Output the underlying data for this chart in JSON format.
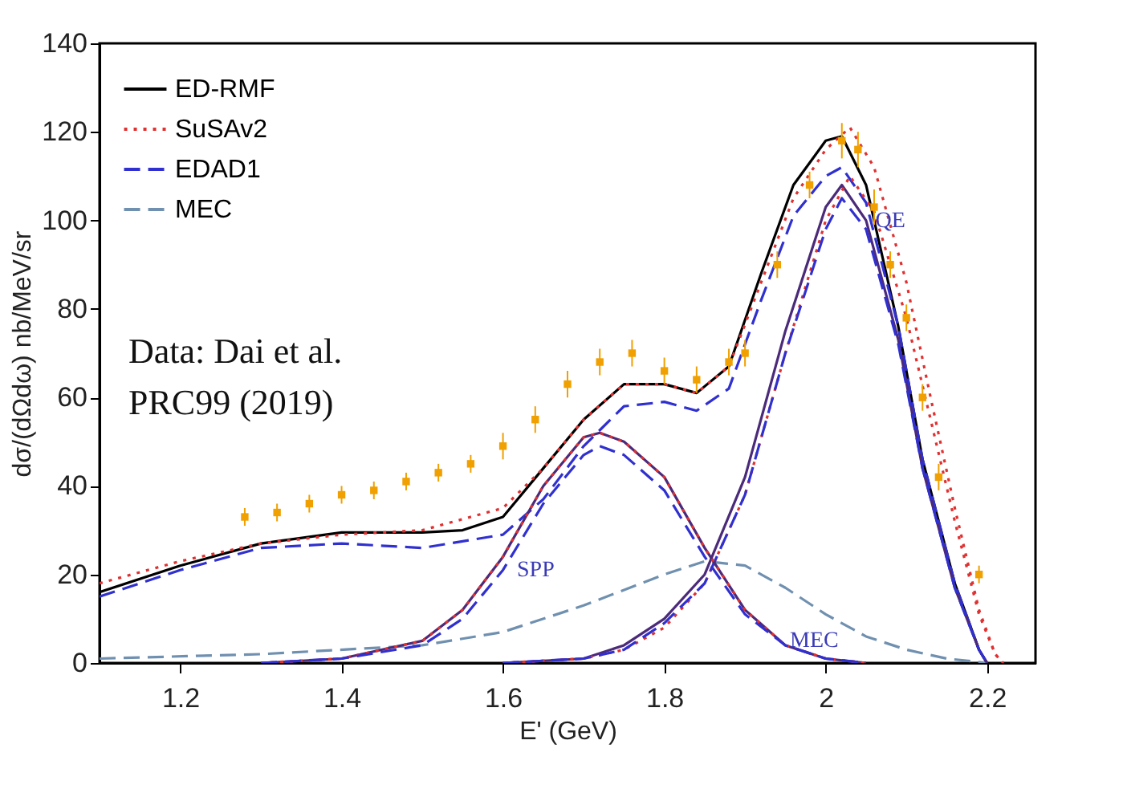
{
  "chart_data": {
    "type": "line",
    "xlabel": "E' (GeV)",
    "ylabel": "dσ/(dΩdω) nb/MeV/sr",
    "xlim": [
      1.1,
      2.26
    ],
    "xticks": [
      1.2,
      1.4,
      1.6,
      1.8,
      2,
      2.2
    ],
    "ylim": [
      0,
      140
    ],
    "yticks": [
      0,
      20,
      40,
      60,
      80,
      100,
      120,
      140
    ],
    "grid": false,
    "legend": "top left",
    "series": [
      {
        "name": "ED-RMF",
        "type": "line",
        "line_style": "solid",
        "color": "#000000",
        "x": [
          1.1,
          1.2,
          1.3,
          1.4,
          1.5,
          1.55,
          1.6,
          1.65,
          1.7,
          1.75,
          1.8,
          1.84,
          1.88,
          1.92,
          1.96,
          2.0,
          2.02,
          2.05,
          2.09,
          2.12,
          2.16,
          2.19,
          2.2
        ],
        "values": [
          16,
          22,
          27,
          29.5,
          29.5,
          30,
          33,
          44,
          55,
          63,
          63,
          61,
          67,
          88,
          108,
          118,
          119,
          108,
          76,
          46,
          18,
          3,
          0
        ]
      },
      {
        "name": "SuSAv2",
        "type": "line",
        "line_style": "dotted",
        "color": "#e03030",
        "x": [
          1.1,
          1.2,
          1.3,
          1.4,
          1.5,
          1.6,
          1.65,
          1.7,
          1.75,
          1.8,
          1.84,
          1.88,
          1.92,
          1.96,
          2.0,
          2.03,
          2.06,
          2.1,
          2.13,
          2.16,
          2.19,
          2.21,
          2.22
        ],
        "values": [
          18,
          23,
          27,
          29,
          30,
          35,
          44,
          55,
          63,
          63,
          61,
          67,
          86,
          105,
          116,
          121,
          112,
          86,
          60,
          35,
          12,
          2,
          0
        ]
      },
      {
        "name": "EDAD1",
        "type": "line",
        "line_style": "dashed",
        "color": "#3030d0",
        "x": [
          1.1,
          1.2,
          1.3,
          1.4,
          1.5,
          1.6,
          1.65,
          1.7,
          1.75,
          1.8,
          1.84,
          1.88,
          1.92,
          1.96,
          2.0,
          2.02,
          2.05,
          2.09,
          2.12,
          2.16,
          2.19,
          2.2
        ],
        "values": [
          15,
          21,
          26,
          27,
          26,
          29,
          37,
          49,
          58,
          59,
          57,
          62,
          82,
          101,
          110,
          112,
          104,
          76,
          46,
          18,
          3,
          0
        ]
      },
      {
        "name": "MEC",
        "type": "line",
        "line_style": "dashed",
        "color": "#7090b0",
        "x": [
          1.1,
          1.3,
          1.5,
          1.6,
          1.7,
          1.8,
          1.85,
          1.9,
          1.95,
          2.0,
          2.05,
          2.1,
          2.15,
          2.2
        ],
        "values": [
          1,
          2,
          4,
          7,
          13,
          20,
          23,
          22,
          17,
          11,
          6,
          3,
          1,
          0
        ]
      },
      {
        "type": "line",
        "line_style": "solid",
        "color": "#4b2a7a",
        "x": [
          1.6,
          1.7,
          1.75,
          1.8,
          1.85,
          1.9,
          1.95,
          2.0,
          2.02,
          2.05,
          2.09,
          2.12,
          2.16,
          2.19,
          2.2
        ],
        "values": [
          0,
          1,
          4,
          10,
          20,
          42,
          75,
          103,
          108,
          100,
          73,
          44,
          17,
          3,
          0
        ]
      },
      {
        "type": "line",
        "line_style": "dotted",
        "color": "#e03030",
        "x": [
          1.6,
          1.7,
          1.75,
          1.8,
          1.85,
          1.9,
          1.95,
          2.0,
          2.03,
          2.06,
          2.1,
          2.13,
          2.16,
          2.19,
          2.21,
          2.22
        ],
        "values": [
          0,
          1,
          3,
          8,
          18,
          38,
          70,
          100,
          110,
          102,
          78,
          55,
          32,
          11,
          2,
          0
        ]
      },
      {
        "type": "line",
        "line_style": "dashed",
        "color": "#3030d0",
        "x": [
          1.6,
          1.7,
          1.75,
          1.8,
          1.85,
          1.9,
          1.95,
          2.0,
          2.02,
          2.05,
          2.09,
          2.12,
          2.16,
          2.19,
          2.2
        ],
        "values": [
          0,
          1,
          3,
          9,
          18,
          38,
          70,
          98,
          105,
          98,
          72,
          44,
          17,
          3,
          0
        ]
      },
      {
        "type": "line",
        "line_style": "solid",
        "color": "#4b2a7a",
        "x": [
          1.3,
          1.4,
          1.5,
          1.55,
          1.6,
          1.65,
          1.7,
          1.72,
          1.75,
          1.8,
          1.85,
          1.9,
          1.95,
          2.0,
          2.05
        ],
        "values": [
          0,
          1,
          5,
          12,
          24,
          40,
          51,
          52,
          50,
          42,
          26,
          12,
          4,
          1,
          0
        ]
      },
      {
        "type": "line",
        "line_style": "dotted",
        "color": "#e03030",
        "x": [
          1.3,
          1.4,
          1.5,
          1.55,
          1.6,
          1.65,
          1.7,
          1.72,
          1.75,
          1.8,
          1.85,
          1.9,
          1.95,
          2.0,
          2.05
        ],
        "values": [
          0,
          1,
          5,
          12,
          24,
          40,
          51,
          52,
          50,
          42,
          26,
          12,
          4,
          1,
          0
        ]
      },
      {
        "type": "line",
        "line_style": "dashed",
        "color": "#3030d0",
        "x": [
          1.3,
          1.4,
          1.5,
          1.55,
          1.6,
          1.65,
          1.7,
          1.72,
          1.75,
          1.8,
          1.85,
          1.9,
          1.95,
          2.0,
          2.05
        ],
        "values": [
          0,
          1,
          4,
          10,
          21,
          36,
          47,
          49,
          47,
          39,
          24,
          11,
          4,
          1,
          0
        ]
      },
      {
        "type": "scatter",
        "marker": "square",
        "color": "#f0a000",
        "x": [
          1.28,
          1.32,
          1.36,
          1.4,
          1.44,
          1.48,
          1.52,
          1.56,
          1.6,
          1.64,
          1.68,
          1.72,
          1.76,
          1.8,
          1.84,
          1.88,
          1.9,
          1.94,
          1.98,
          2.02,
          2.04,
          2.06,
          2.08,
          2.1,
          2.12,
          2.14,
          2.19
        ],
        "values": [
          33,
          34,
          36,
          38,
          39,
          41,
          43,
          45,
          49,
          55,
          63,
          68,
          70,
          66,
          64,
          68,
          70,
          90,
          108,
          118,
          116,
          103,
          90,
          78,
          60,
          42,
          20
        ],
        "errors": [
          2,
          2,
          2,
          2,
          2,
          2,
          2,
          2,
          3,
          3,
          3,
          3,
          3,
          3,
          3,
          3,
          3,
          3,
          3,
          4,
          4,
          4,
          3,
          3,
          3,
          3,
          2
        ]
      }
    ],
    "annotations": [
      "Data: Dai et al.",
      "PRC99 (2019)",
      {
        "text": "QE",
        "x": 2.08,
        "y": 100
      },
      "SPP",
      "MEC"
    ]
  }
}
